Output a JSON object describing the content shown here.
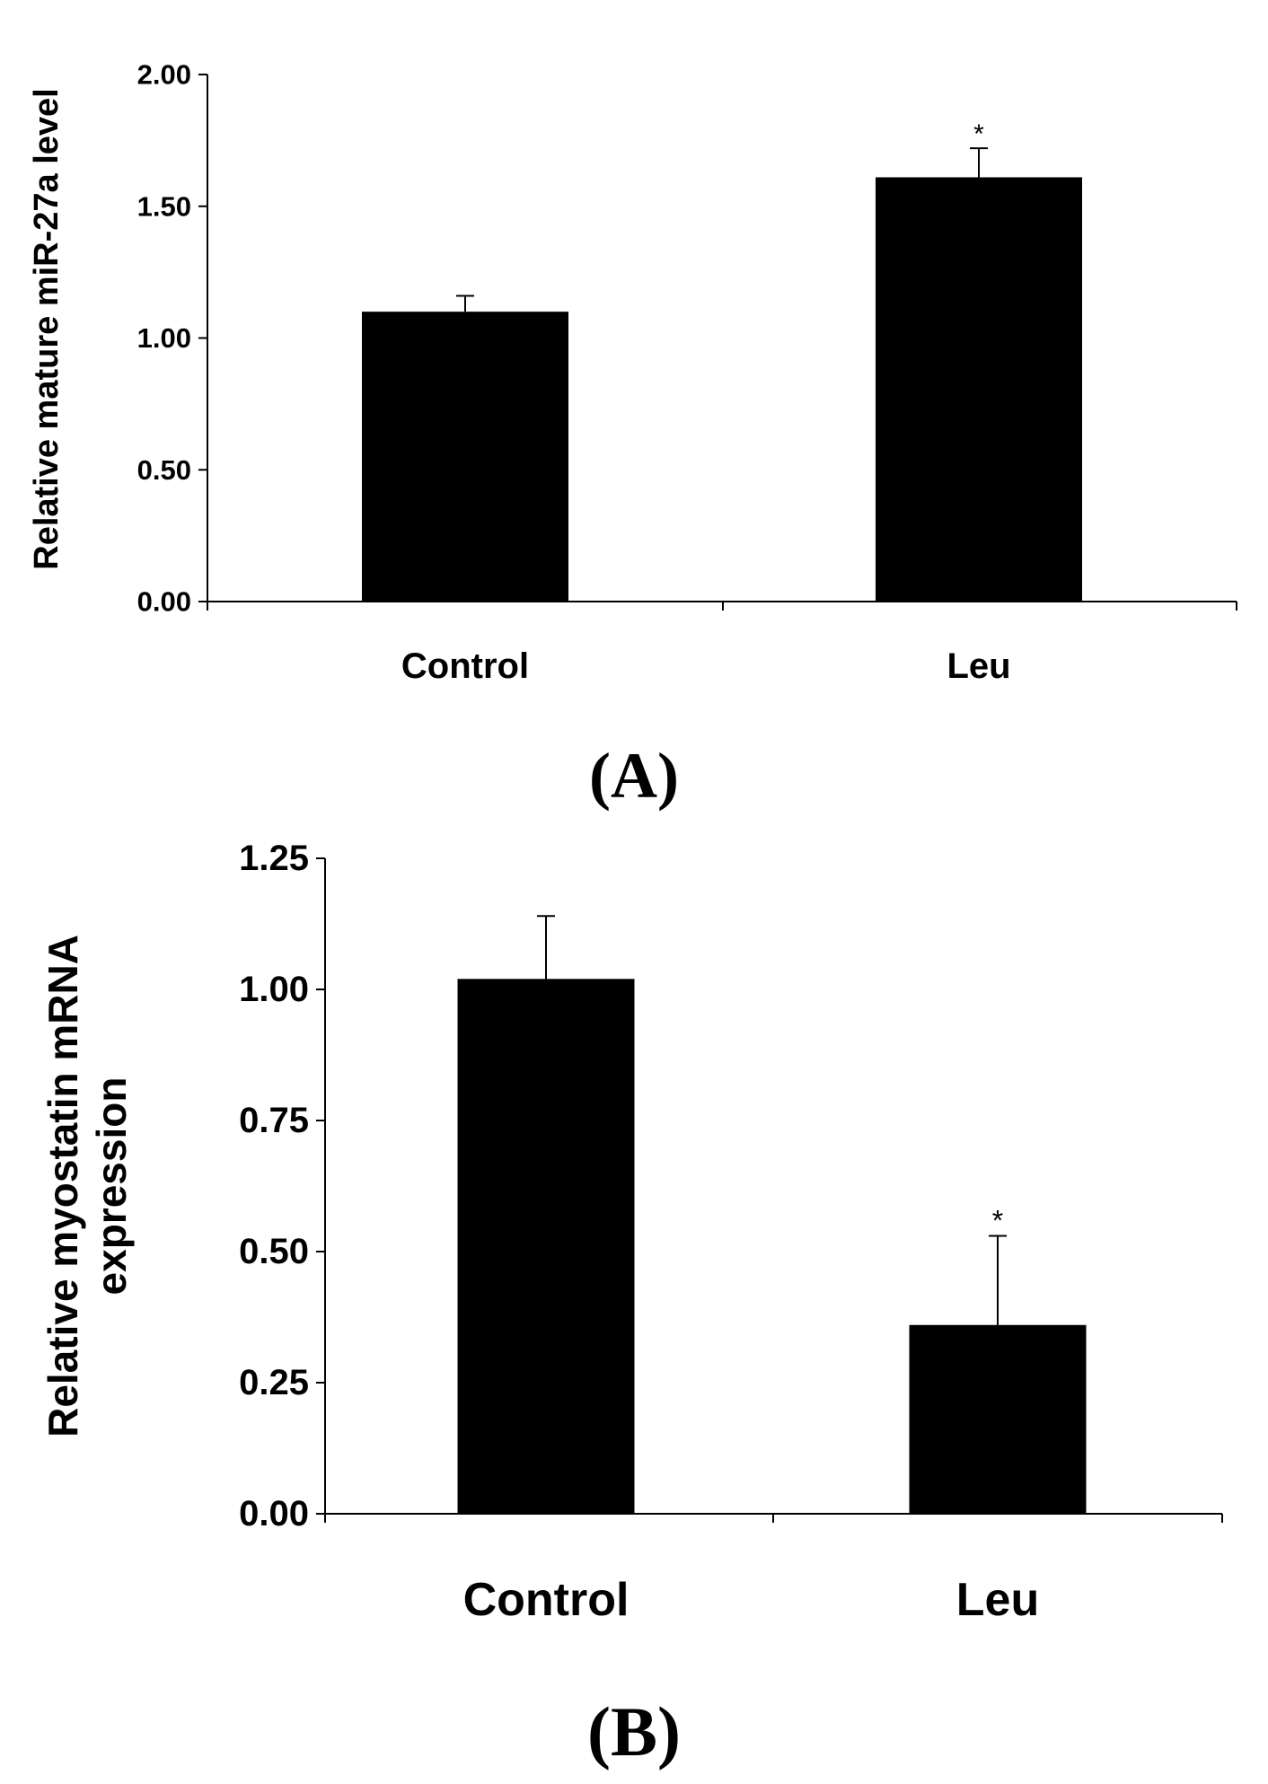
{
  "chart_data": [
    {
      "type": "bar",
      "panel_label": "(A)",
      "title": "",
      "xlabel": "",
      "ylabel": "Relative mature miR-27a level",
      "categories": [
        "Control",
        "Leu"
      ],
      "values": [
        1.1,
        1.61
      ],
      "error_bars": [
        0.06,
        0.11
      ],
      "significance": [
        "",
        "*"
      ],
      "ylim": [
        0.0,
        2.0
      ],
      "yticks": [
        "0.00",
        "0.50",
        "1.00",
        "1.50",
        "2.00"
      ],
      "bar_color": "#000000",
      "grid": false,
      "legend": "none"
    },
    {
      "type": "bar",
      "panel_label": "(B)",
      "title": "",
      "xlabel": "",
      "ylabel": [
        "Relative myostatin mRNA",
        "expression"
      ],
      "categories": [
        "Control",
        "Leu"
      ],
      "values": [
        1.02,
        0.36
      ],
      "error_bars": [
        0.12,
        0.17
      ],
      "significance": [
        "",
        "*"
      ],
      "ylim": [
        0.0,
        1.25
      ],
      "yticks": [
        "0.00",
        "0.25",
        "0.50",
        "0.75",
        "1.00",
        "1.25"
      ],
      "bar_color": "#000000",
      "grid": false,
      "legend": "none"
    }
  ]
}
